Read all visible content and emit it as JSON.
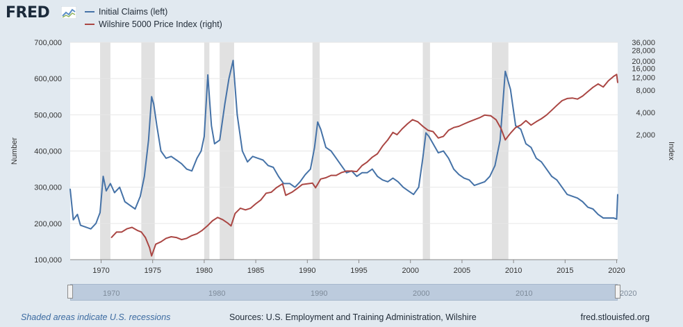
{
  "header": {
    "logo_text": "FRED",
    "logo_icon": "chart-line-icon"
  },
  "legend": [
    {
      "label": "Initial Claims (left)",
      "color": "#4572a7"
    },
    {
      "label": "Wilshire 5000 Price Index (right)",
      "color": "#aa4643"
    }
  ],
  "footer": {
    "recession_note": "Shaded areas indicate U.S. recessions",
    "sources": "Sources: U.S. Employment and Training Administration, Wilshire",
    "site": "fred.stlouisfed.org"
  },
  "navigator": {
    "labels": [
      "1970",
      "1980",
      "1990",
      "2000",
      "2010",
      "2020"
    ]
  },
  "chart_data": {
    "type": "line",
    "xlabel": "",
    "ylabel": "Number",
    "y2label": "Index",
    "x_ticks": [
      "1970",
      "1975",
      "1980",
      "1985",
      "1990",
      "1995",
      "2000",
      "2005",
      "2010",
      "2015",
      "2020"
    ],
    "xlim": [
      1967.0,
      2020.1
    ],
    "ylim": [
      100000,
      700000
    ],
    "y_ticks": [
      "100,000",
      "200,000",
      "300,000",
      "400,000",
      "500,000",
      "600,000",
      "700,000"
    ],
    "y2_scale": "log",
    "y2lim": [
      40,
      36000
    ],
    "y2_ticks": [
      "2,000",
      "4,000",
      "8,000",
      "12,000",
      "16,000",
      "20,000",
      "28,000",
      "36,000"
    ],
    "grid": true,
    "recessions": [
      [
        1969.9,
        1970.9
      ],
      [
        1973.9,
        1975.2
      ],
      [
        1980.0,
        1980.5
      ],
      [
        1981.5,
        1982.9
      ],
      [
        1990.5,
        1991.2
      ],
      [
        2001.2,
        2001.9
      ],
      [
        2007.9,
        2009.5
      ]
    ],
    "series": [
      {
        "name": "Initial Claims (left)",
        "color": "#4572a7",
        "axis": "left",
        "x": [
          1967.0,
          1967.3,
          1967.7,
          1968.0,
          1968.5,
          1969.0,
          1969.5,
          1969.9,
          1970.2,
          1970.5,
          1970.9,
          1971.3,
          1971.8,
          1972.3,
          1972.8,
          1973.3,
          1973.8,
          1974.2,
          1974.6,
          1974.9,
          1975.1,
          1975.4,
          1975.8,
          1976.3,
          1976.8,
          1977.3,
          1977.8,
          1978.3,
          1978.8,
          1979.3,
          1979.7,
          1980.0,
          1980.35,
          1980.7,
          1981.0,
          1981.5,
          1982.0,
          1982.4,
          1982.8,
          1983.2,
          1983.7,
          1984.2,
          1984.7,
          1985.2,
          1985.7,
          1986.2,
          1986.7,
          1987.2,
          1987.7,
          1988.3,
          1988.8,
          1989.3,
          1989.8,
          1990.3,
          1990.7,
          1991.0,
          1991.3,
          1991.8,
          1992.3,
          1992.8,
          1993.3,
          1993.8,
          1994.3,
          1994.8,
          1995.3,
          1995.8,
          1996.3,
          1996.8,
          1997.3,
          1997.8,
          1998.3,
          1998.8,
          1999.3,
          1999.8,
          2000.3,
          2000.8,
          2001.2,
          2001.5,
          2001.8,
          2002.2,
          2002.7,
          2003.2,
          2003.7,
          2004.2,
          2004.7,
          2005.2,
          2005.7,
          2006.2,
          2006.7,
          2007.2,
          2007.7,
          2008.2,
          2008.7,
          2009.2,
          2009.7,
          2010.2,
          2010.7,
          2011.2,
          2011.7,
          2012.2,
          2012.7,
          2013.2,
          2013.7,
          2014.2,
          2014.7,
          2015.2,
          2015.7,
          2016.2,
          2016.7,
          2017.2,
          2017.7,
          2018.2,
          2018.7,
          2019.2,
          2019.7,
          2020.0,
          2020.1
        ],
        "values": [
          295000,
          210000,
          225000,
          195000,
          190000,
          185000,
          200000,
          230000,
          330000,
          290000,
          310000,
          285000,
          300000,
          260000,
          250000,
          240000,
          275000,
          330000,
          430000,
          550000,
          530000,
          470000,
          400000,
          380000,
          385000,
          375000,
          365000,
          350000,
          345000,
          380000,
          400000,
          440000,
          610000,
          470000,
          420000,
          430000,
          530000,
          600000,
          650000,
          500000,
          400000,
          370000,
          385000,
          380000,
          375000,
          360000,
          355000,
          330000,
          310000,
          310000,
          300000,
          315000,
          335000,
          350000,
          410000,
          480000,
          460000,
          410000,
          400000,
          380000,
          360000,
          340000,
          345000,
          330000,
          340000,
          340000,
          350000,
          330000,
          320000,
          315000,
          325000,
          315000,
          300000,
          290000,
          280000,
          300000,
          380000,
          450000,
          440000,
          420000,
          395000,
          400000,
          380000,
          350000,
          335000,
          325000,
          320000,
          305000,
          310000,
          315000,
          330000,
          360000,
          430000,
          620000,
          570000,
          470000,
          460000,
          420000,
          410000,
          380000,
          370000,
          350000,
          330000,
          320000,
          300000,
          280000,
          275000,
          270000,
          260000,
          245000,
          240000,
          225000,
          215000,
          215000,
          215000,
          212000,
          280000
        ]
      },
      {
        "name": "Wilshire 5000 Price Index (right)",
        "color": "#aa4643",
        "axis": "right",
        "x": [
          1971.0,
          1971.5,
          1972.0,
          1972.5,
          1973.0,
          1973.5,
          1973.9,
          1974.3,
          1974.7,
          1974.9,
          1975.3,
          1975.8,
          1976.3,
          1976.8,
          1977.3,
          1977.8,
          1978.3,
          1978.8,
          1979.3,
          1979.8,
          1980.3,
          1980.8,
          1981.3,
          1981.8,
          1982.3,
          1982.6,
          1983.0,
          1983.5,
          1984.0,
          1984.5,
          1985.0,
          1985.5,
          1986.0,
          1986.5,
          1987.0,
          1987.6,
          1987.9,
          1988.5,
          1989.0,
          1989.5,
          1990.0,
          1990.5,
          1990.8,
          1991.3,
          1991.8,
          1992.3,
          1992.8,
          1993.3,
          1993.8,
          1994.3,
          1994.8,
          1995.3,
          1995.8,
          1996.3,
          1996.8,
          1997.3,
          1997.8,
          1998.3,
          1998.7,
          1999.2,
          1999.7,
          2000.2,
          2000.7,
          2001.2,
          2001.7,
          2002.2,
          2002.7,
          2003.2,
          2003.7,
          2004.2,
          2004.7,
          2005.2,
          2005.7,
          2006.2,
          2006.7,
          2007.2,
          2007.8,
          2008.3,
          2008.8,
          2009.2,
          2009.7,
          2010.2,
          2010.7,
          2011.2,
          2011.7,
          2012.2,
          2012.7,
          2013.2,
          2013.7,
          2014.2,
          2014.7,
          2015.2,
          2015.7,
          2016.2,
          2016.7,
          2017.2,
          2017.7,
          2018.2,
          2018.7,
          2019.2,
          2019.7,
          2020.0,
          2020.1
        ],
        "values": [
          80,
          95,
          95,
          105,
          110,
          100,
          95,
          80,
          58,
          45,
          65,
          70,
          78,
          82,
          80,
          75,
          78,
          85,
          90,
          100,
          115,
          135,
          150,
          140,
          125,
          115,
          170,
          200,
          190,
          200,
          230,
          260,
          320,
          330,
          380,
          430,
          300,
          330,
          370,
          420,
          430,
          440,
          380,
          500,
          520,
          560,
          560,
          610,
          640,
          640,
          630,
          760,
          850,
          990,
          1100,
          1400,
          1700,
          2150,
          2000,
          2400,
          2800,
          3200,
          3000,
          2600,
          2300,
          2200,
          1800,
          1900,
          2300,
          2500,
          2600,
          2800,
          3000,
          3200,
          3400,
          3700,
          3600,
          3200,
          2400,
          1700,
          2100,
          2500,
          2700,
          3100,
          2700,
          3000,
          3300,
          3700,
          4300,
          5000,
          5800,
          6200,
          6300,
          6100,
          6700,
          7700,
          8800,
          9800,
          8900,
          10800,
          12400,
          13200,
          10200
        ]
      }
    ]
  }
}
